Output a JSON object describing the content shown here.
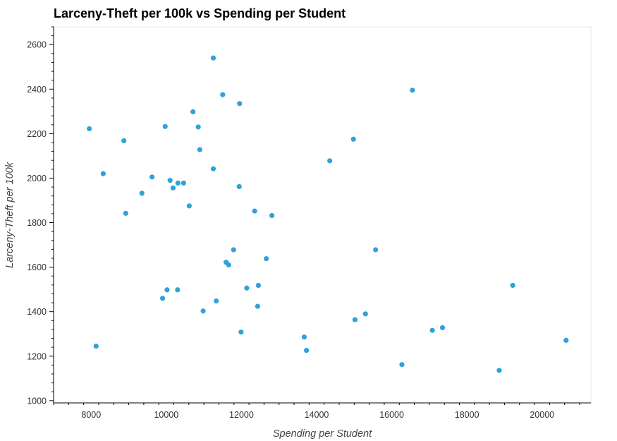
{
  "chart_data": {
    "type": "scatter",
    "title": "Larceny-Theft per 100k vs Spending per Student",
    "xlabel": "Spending per Student",
    "ylabel": "Larceny-Theft per 100k",
    "xlim": [
      7000,
      21300
    ],
    "ylim": [
      990,
      2680
    ],
    "xticks": [
      8000,
      10000,
      12000,
      14000,
      16000,
      18000,
      20000
    ],
    "yticks": [
      1000,
      1200,
      1400,
      1600,
      1800,
      2000,
      2200,
      2400,
      2600
    ],
    "grid": false,
    "point_color": "#30a2da",
    "points": [
      {
        "x": 7950,
        "y": 2222
      },
      {
        "x": 8130,
        "y": 1245
      },
      {
        "x": 8320,
        "y": 2020
      },
      {
        "x": 8870,
        "y": 2168
      },
      {
        "x": 8920,
        "y": 1842
      },
      {
        "x": 9350,
        "y": 1932
      },
      {
        "x": 9620,
        "y": 2005
      },
      {
        "x": 9900,
        "y": 1460
      },
      {
        "x": 9970,
        "y": 2232
      },
      {
        "x": 10020,
        "y": 1498
      },
      {
        "x": 10100,
        "y": 1990
      },
      {
        "x": 10180,
        "y": 1956
      },
      {
        "x": 10300,
        "y": 1498
      },
      {
        "x": 10310,
        "y": 1978
      },
      {
        "x": 10460,
        "y": 1978
      },
      {
        "x": 10610,
        "y": 1875
      },
      {
        "x": 10710,
        "y": 2298
      },
      {
        "x": 10850,
        "y": 2230
      },
      {
        "x": 10890,
        "y": 2128
      },
      {
        "x": 10980,
        "y": 1403
      },
      {
        "x": 11250,
        "y": 2540
      },
      {
        "x": 11250,
        "y": 2042
      },
      {
        "x": 11330,
        "y": 1448
      },
      {
        "x": 11500,
        "y": 2375
      },
      {
        "x": 11590,
        "y": 1622
      },
      {
        "x": 11660,
        "y": 1610
      },
      {
        "x": 11790,
        "y": 1678
      },
      {
        "x": 11940,
        "y": 1962
      },
      {
        "x": 11950,
        "y": 2335
      },
      {
        "x": 11990,
        "y": 1308
      },
      {
        "x": 12140,
        "y": 1506
      },
      {
        "x": 12350,
        "y": 1852
      },
      {
        "x": 12430,
        "y": 1424
      },
      {
        "x": 12450,
        "y": 1518
      },
      {
        "x": 12660,
        "y": 1638
      },
      {
        "x": 12810,
        "y": 1832
      },
      {
        "x": 13670,
        "y": 1286
      },
      {
        "x": 13730,
        "y": 1226
      },
      {
        "x": 14350,
        "y": 2078
      },
      {
        "x": 14980,
        "y": 2175
      },
      {
        "x": 15020,
        "y": 1364
      },
      {
        "x": 15300,
        "y": 1390
      },
      {
        "x": 15570,
        "y": 1678
      },
      {
        "x": 16270,
        "y": 1162
      },
      {
        "x": 16550,
        "y": 2395
      },
      {
        "x": 17080,
        "y": 1316
      },
      {
        "x": 17350,
        "y": 1328
      },
      {
        "x": 18860,
        "y": 1136
      },
      {
        "x": 19220,
        "y": 1518
      },
      {
        "x": 20640,
        "y": 1271
      }
    ]
  }
}
